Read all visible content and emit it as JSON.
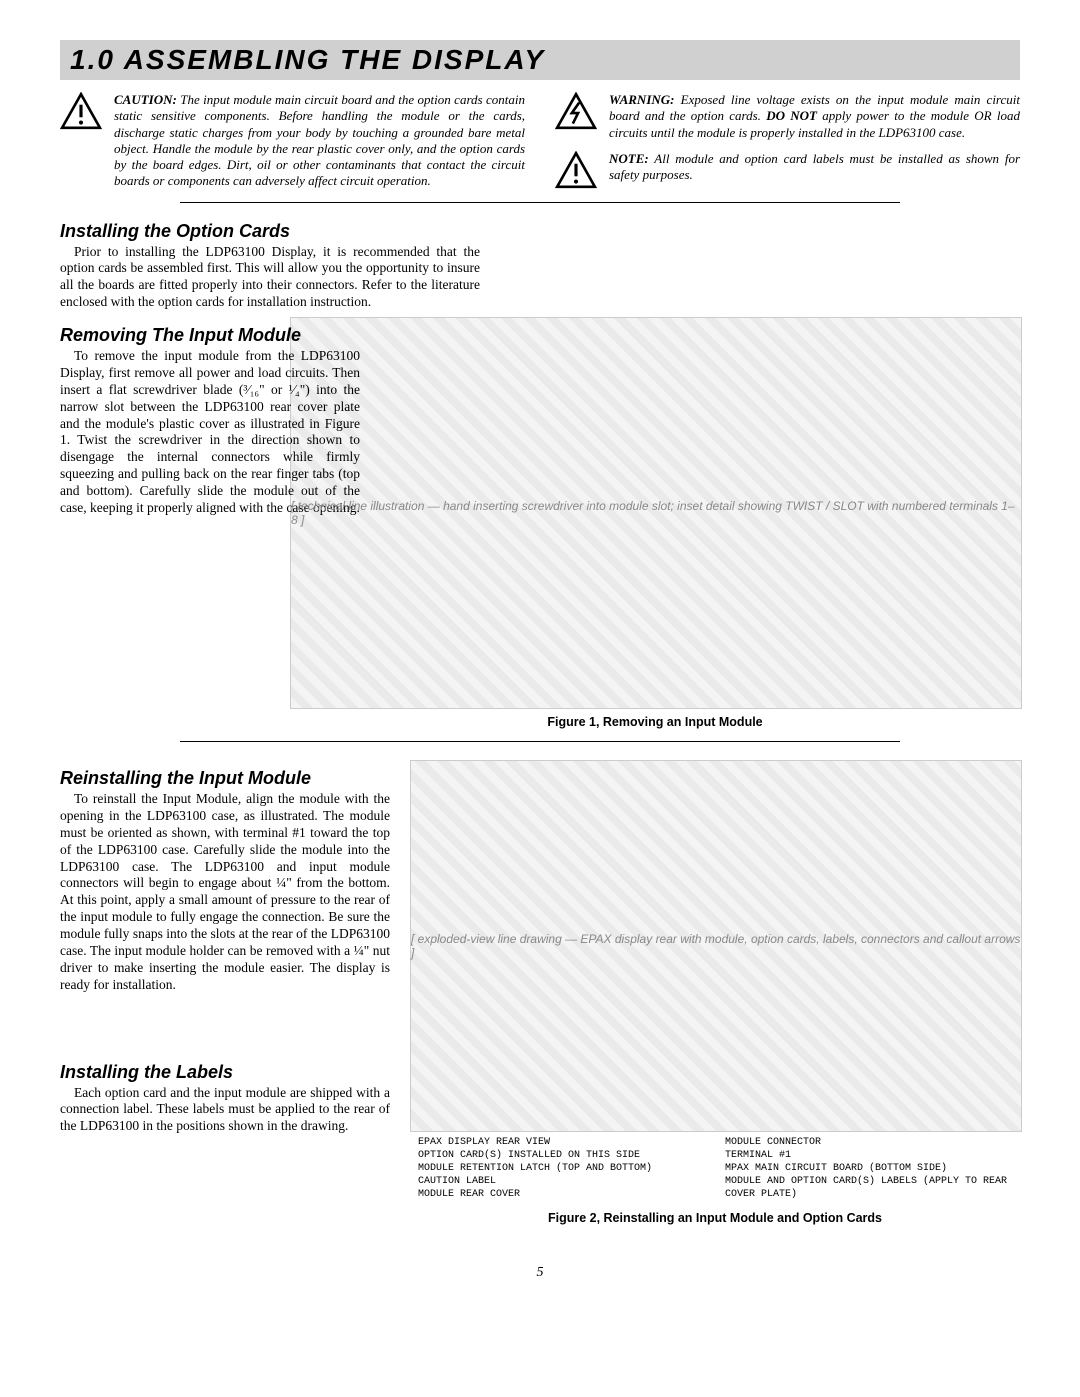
{
  "section_number": "1.0",
  "section_title": "ASSEMBLING THE DISPLAY",
  "warnings": {
    "caution": {
      "label": "CAUTION:",
      "text": "The input module main circuit board and the option cards contain static sensitive components. Before handling the module or the cards, discharge static charges from your body by touching a grounded bare metal object. Handle the module by the rear plastic cover only, and the option cards by the board edges. Dirt, oil or other contaminants that contact the circuit boards or components can adversely affect circuit operation."
    },
    "warning": {
      "label": "WARNING:",
      "text_pre": "Exposed line voltage exists on the input module main circuit board and the option cards. ",
      "bold": "DO NOT",
      "text_post": " apply power to the module OR load circuits until the module is properly installed in the LDP63100 case."
    },
    "note": {
      "label": "NOTE:",
      "text": "All module and option card labels must be installed as shown for safety purposes."
    }
  },
  "installing_option_cards": {
    "heading": "Installing the Option Cards",
    "body": "Prior to installing the LDP63100 Display, it is recommended that the option cards be assembled first. This will allow you the opportunity to insure all the boards are fitted properly into their connectors. Refer to the literature enclosed with the option cards for installation instruction."
  },
  "removing_input_module": {
    "heading": "Removing The Input Module",
    "body": "To remove the input module from the LDP63100 Display, first remove all power and load circuits. Then insert a flat screwdriver blade (³⁄₁₆\" or ¹⁄₄\") into the narrow slot between the LDP63100 rear cover plate and the module's plastic cover as illustrated in Figure 1. Twist the screwdriver in the direction shown to disengage the internal connectors while firmly squeezing and pulling back on the rear finger tabs (top and bottom). Carefully slide the module out of the case, keeping it properly aligned with the case opening."
  },
  "figure1": {
    "caption": "Figure 1, Removing an Input Module",
    "inset_labels": [
      "TWIST",
      "SLOT"
    ],
    "slot_numbers": [
      "1",
      "2",
      "3",
      "4",
      "5",
      "6",
      "7",
      "8"
    ]
  },
  "reinstalling_input_module": {
    "heading": "Reinstalling the Input Module",
    "body": "To reinstall the Input Module, align the module with the opening in the LDP63100 case, as illustrated. The module must be oriented as shown, with terminal #1 toward the top of the LDP63100 case. Carefully slide the module into the LDP63100 case. The LDP63100 and input module connectors will begin to engage about ¼\" from the bottom. At this point, apply a small amount of pressure to the rear of the input module to fully engage the connection. Be sure the module fully snaps into the slots at the rear of the LDP63100 case. The input module holder can be removed with a ¼\" nut driver to make inserting the module easier. The display is ready for installation."
  },
  "installing_labels": {
    "heading": "Installing the Labels",
    "body": "Each option card and the input module are shipped with a connection label. These labels must be applied to the rear of the LDP63100 in the positions shown in the drawing."
  },
  "figure2": {
    "caption": "Figure 2, Reinstalling an Input Module and Option Cards",
    "callouts": [
      "EPAX DISPLAY REAR VIEW",
      "OPTION CARD(S) INSTALLED ON THIS SIDE",
      "MODULE RETENTION LATCH (TOP AND BOTTOM)",
      "CAUTION LABEL",
      "MODULE REAR COVER",
      "MODULE CONNECTOR",
      "TERMINAL #1",
      "MPAX MAIN CIRCUIT BOARD (BOTTOM SIDE)",
      "MODULE AND OPTION CARD(S) LABELS (APPLY TO REAR COVER PLATE)"
    ]
  },
  "page_number": "5",
  "colors": {
    "header_bg": "#d0d0d0",
    "text": "#000000",
    "rule": "#000000"
  }
}
